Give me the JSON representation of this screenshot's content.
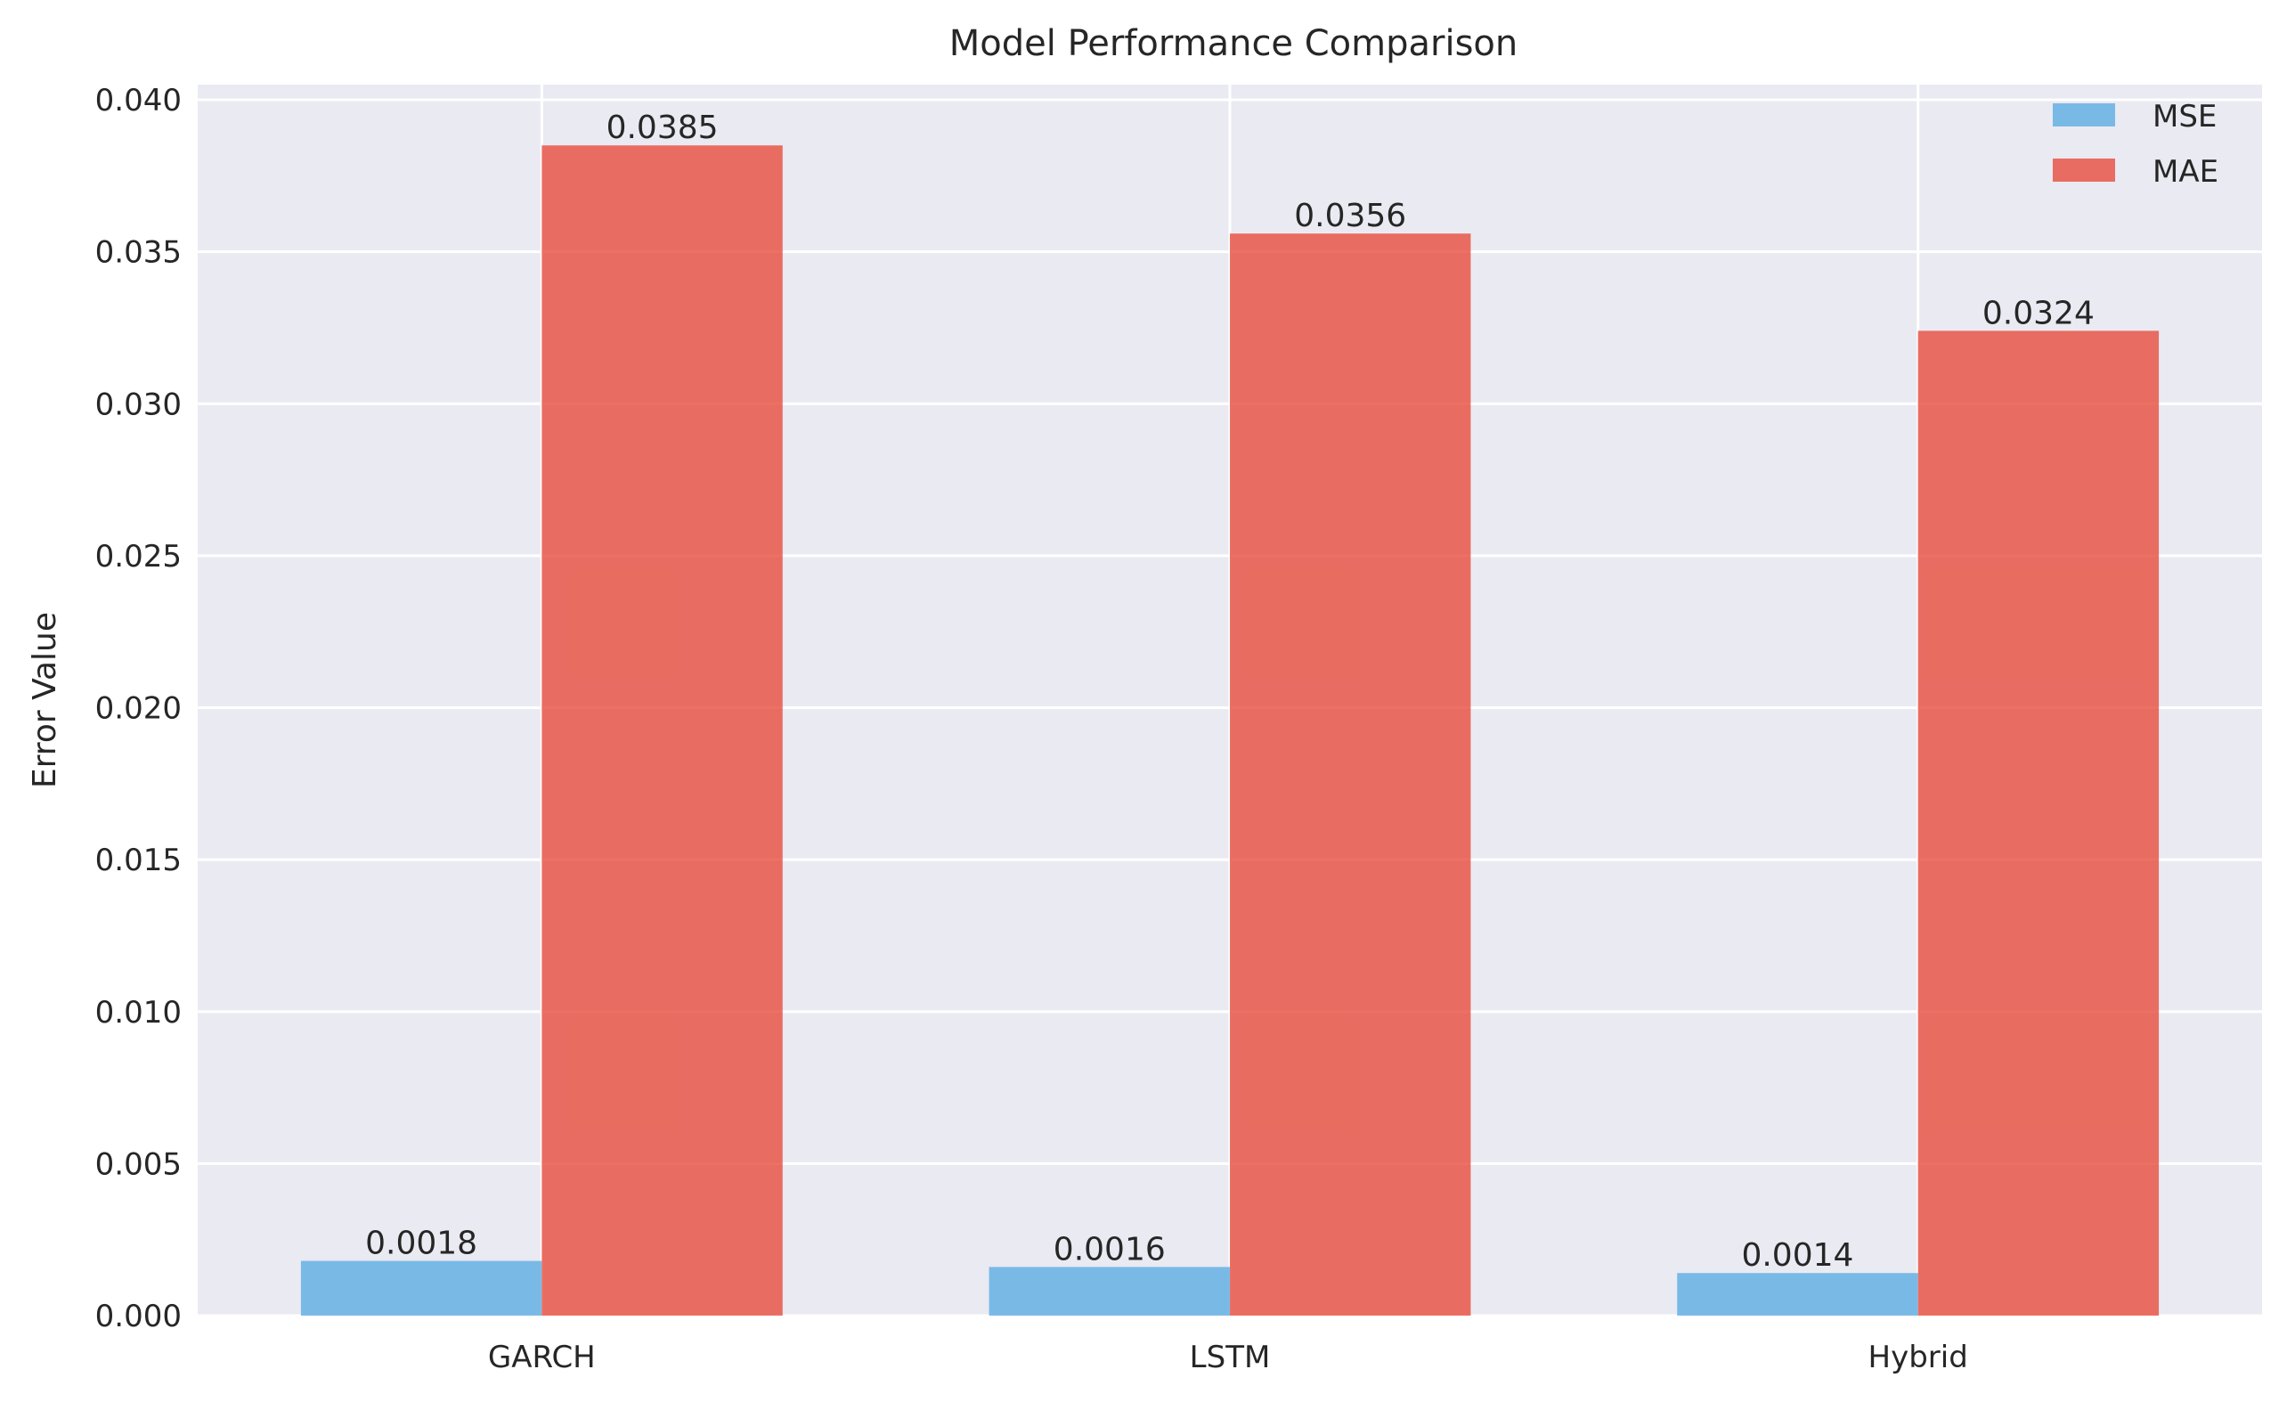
{
  "chart_data": {
    "type": "bar",
    "title": "Model Performance Comparison",
    "xlabel": "",
    "ylabel": "Error Value",
    "categories": [
      "GARCH",
      "LSTM",
      "Hybrid"
    ],
    "series": [
      {
        "name": "MSE",
        "values": [
          0.0018,
          0.0016,
          0.0014
        ],
        "labels": [
          "0.0018",
          "0.0016",
          "0.0014"
        ],
        "color": "#5DADE2"
      },
      {
        "name": "MAE",
        "values": [
          0.0385,
          0.0356,
          0.0324
        ],
        "labels": [
          "0.0385",
          "0.0356",
          "0.0324"
        ],
        "color": "#E74C3C"
      }
    ],
    "ylim": [
      0,
      0.0405
    ],
    "yticks": [
      0.0,
      0.005,
      0.01,
      0.015,
      0.02,
      0.025,
      0.03,
      0.035,
      0.04
    ],
    "ytick_labels": [
      "0.000",
      "0.005",
      "0.010",
      "0.015",
      "0.020",
      "0.025",
      "0.030",
      "0.035",
      "0.040"
    ],
    "grid": true,
    "legend_position": "top-right",
    "background_color": "#EAEAF2",
    "grid_color": "#FFFFFF"
  }
}
